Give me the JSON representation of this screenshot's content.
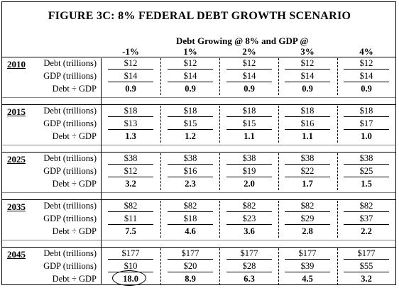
{
  "title": "FIGURE 3C: 8% FEDERAL DEBT GROWTH SCENARIO",
  "subheading": "Debt Growing @ 8% and GDP @",
  "columns": [
    "-1%",
    "1%",
    "2%",
    "3%",
    "4%"
  ],
  "row_labels": {
    "debt": "Debt (trillions)",
    "gdp": "GDP (trillions)",
    "ratio": "Debt ÷ GDP"
  },
  "blocks": [
    {
      "year": "2010",
      "debt": [
        "$12",
        "$12",
        "$12",
        "$12",
        "$12"
      ],
      "gdp": [
        "$14",
        "$14",
        "$14",
        "$14",
        "$14"
      ],
      "ratio": [
        "0.9",
        "0.9",
        "0.9",
        "0.9",
        "0.9"
      ]
    },
    {
      "year": "2015",
      "debt": [
        "$18",
        "$18",
        "$18",
        "$18",
        "$18"
      ],
      "gdp": [
        "$13",
        "$15",
        "$15",
        "$16",
        "$17"
      ],
      "ratio": [
        "1.3",
        "1.2",
        "1.1",
        "1.1",
        "1.0"
      ]
    },
    {
      "year": "2025",
      "debt": [
        "$38",
        "$38",
        "$38",
        "$38",
        "$38"
      ],
      "gdp": [
        "$12",
        "$16",
        "$19",
        "$22",
        "$25"
      ],
      "ratio": [
        "3.2",
        "2.3",
        "2.0",
        "1.7",
        "1.5"
      ]
    },
    {
      "year": "2035",
      "debt": [
        "$82",
        "$82",
        "$82",
        "$82",
        "$82"
      ],
      "gdp": [
        "$11",
        "$18",
        "$23",
        "$29",
        "$37"
      ],
      "ratio": [
        "7.5",
        "4.6",
        "3.6",
        "2.8",
        "2.2"
      ]
    },
    {
      "year": "2045",
      "debt": [
        "$177",
        "$177",
        "$177",
        "$177",
        "$177"
      ],
      "gdp": [
        "$10",
        "$20",
        "$28",
        "$39",
        "$55"
      ],
      "ratio": [
        "18.0",
        "8.9",
        "6.3",
        "4.5",
        "3.2"
      ]
    }
  ]
}
